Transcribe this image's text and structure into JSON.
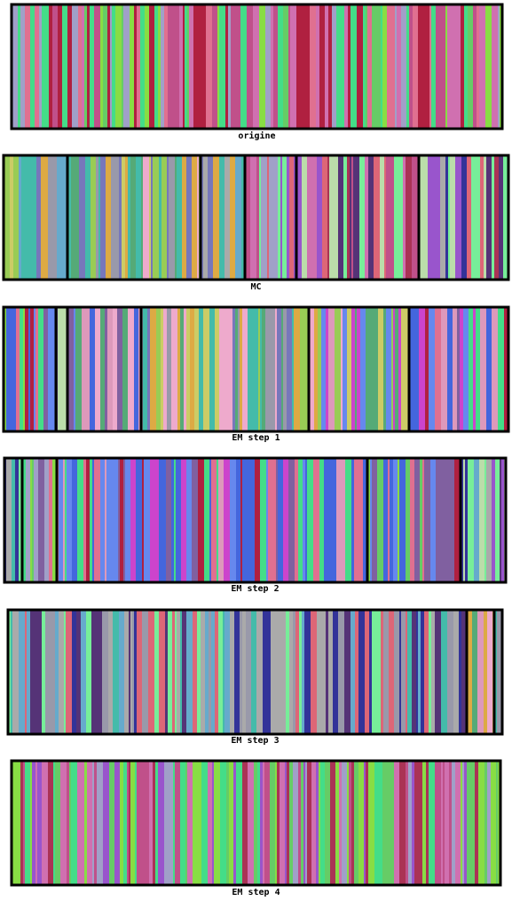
{
  "panels": [
    {
      "caption": "origine"
    },
    {
      "caption": "MC"
    },
    {
      "caption": "EM step 1"
    },
    {
      "caption": "EM step 2"
    },
    {
      "caption": "EM step 3"
    },
    {
      "caption": "EM step 4"
    }
  ]
}
